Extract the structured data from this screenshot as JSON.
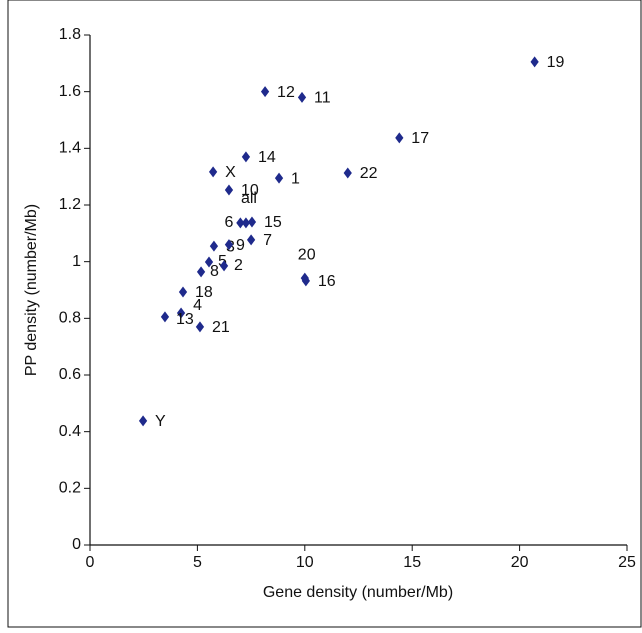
{
  "chart_data": {
    "type": "scatter",
    "xlabel": "Gene density (number/Mb)",
    "ylabel": "PP density (number/Mb)",
    "labels": [
      "19",
      "12",
      "11",
      "17",
      "14",
      "X",
      "1",
      "22",
      "10",
      "6",
      "all",
      "15",
      "3",
      "9",
      "7",
      "5",
      "2",
      "8",
      "20",
      "16",
      "18",
      "4",
      "13",
      "21",
      "Y"
    ],
    "x": [
      20.7,
      8.15,
      9.87,
      14.4,
      7.26,
      5.73,
      8.8,
      12.0,
      6.47,
      7.0,
      7.26,
      7.54,
      5.77,
      6.47,
      7.5,
      5.54,
      6.24,
      5.17,
      10.0,
      10.05,
      4.33,
      4.24,
      3.49,
      5.12,
      2.47
    ],
    "values": [
      1.705,
      1.6,
      1.58,
      1.437,
      1.37,
      1.317,
      1.295,
      1.313,
      1.253,
      1.137,
      1.137,
      1.14,
      1.055,
      1.06,
      1.077,
      0.999,
      0.985,
      0.964,
      0.942,
      0.932,
      0.893,
      0.819,
      0.805,
      0.77,
      0.438
    ],
    "color": "#1f2a8c",
    "xlim": [
      0,
      25
    ],
    "xticks": [
      0,
      5,
      10,
      15,
      20,
      25
    ],
    "ylim": [
      0,
      1.8
    ],
    "yticks": [
      0,
      0.2,
      0.4,
      0.6,
      0.8,
      1,
      1.2,
      1.4,
      1.6,
      1.8
    ]
  }
}
